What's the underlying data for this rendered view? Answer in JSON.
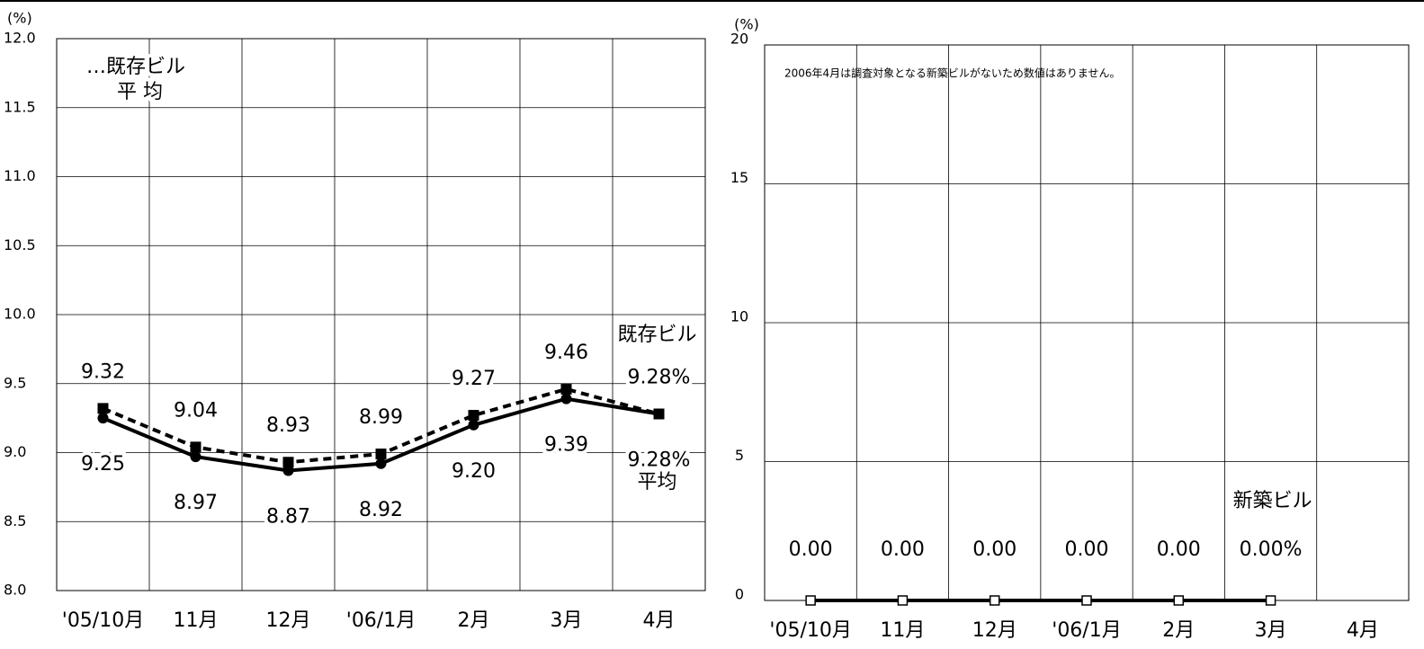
{
  "chart_data": [
    {
      "type": "line",
      "ylabel": "(%)",
      "categories": [
        "'05/10月",
        "11月",
        "12月",
        "'06/1月",
        "2月",
        "3月",
        "4月"
      ],
      "ylim": [
        8.0,
        12.0
      ],
      "yticks": [
        {
          "value": 8.0,
          "label": "8.0"
        },
        {
          "value": 8.5,
          "label": "8.5"
        },
        {
          "value": 9.0,
          "label": "9.0"
        },
        {
          "value": 9.5,
          "label": "9.5"
        },
        {
          "value": 10.0,
          "label": "10.0"
        },
        {
          "value": 10.5,
          "label": "10.5"
        },
        {
          "value": 11.0,
          "label": "11.0"
        },
        {
          "value": 11.5,
          "label": "11.5"
        },
        {
          "value": 12.0,
          "label": "12.0"
        }
      ],
      "grid": true,
      "annotations": [
        "…既存ビル",
        "平 均"
      ],
      "series": [
        {
          "name": "既存ビル",
          "color": "#000000",
          "line_style": "dashed",
          "marker": "square",
          "values": [
            9.32,
            9.04,
            8.93,
            8.99,
            9.27,
            9.46,
            9.28
          ],
          "value_labels": [
            "9.32",
            "9.04",
            "8.93",
            "8.99",
            "9.27",
            "9.46",
            "9.28%"
          ]
        },
        {
          "name": "平均",
          "color": "#000000",
          "line_style": "solid",
          "marker": "circle",
          "values": [
            9.25,
            8.97,
            8.87,
            8.92,
            9.2,
            9.39,
            9.28
          ],
          "value_labels": [
            "9.25",
            "8.97",
            "8.87",
            "8.92",
            "9.20",
            "9.39",
            "9.28%"
          ]
        }
      ]
    },
    {
      "type": "line",
      "ylabel": "(%)",
      "note": "2006年4月は調査対象となる新築ビルがないため数値はありません。",
      "categories": [
        "'05/10月",
        "11月",
        "12月",
        "'06/1月",
        "2月",
        "3月",
        "4月"
      ],
      "ylim": [
        0,
        20
      ],
      "yticks": [
        0,
        5,
        10,
        15,
        20
      ],
      "grid": true,
      "series": [
        {
          "name": "新築ビル",
          "color": "#000000",
          "line_style": "solid",
          "marker": "open-square",
          "values": [
            0,
            0,
            0,
            0,
            0,
            0,
            null
          ],
          "value_labels": [
            "0.00",
            "0.00",
            "0.00",
            "0.00",
            "0.00",
            "0.00%",
            null
          ]
        }
      ]
    }
  ]
}
